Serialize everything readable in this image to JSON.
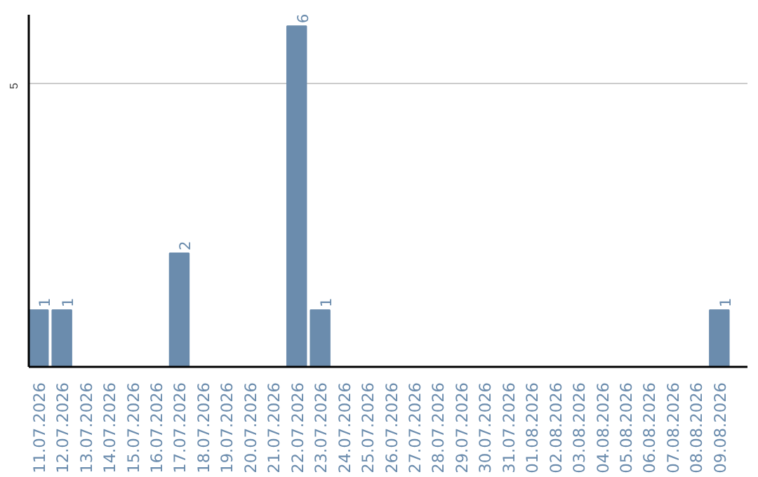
{
  "chart_data": {
    "type": "bar",
    "categories": [
      "11.07.2026",
      "12.07.2026",
      "13.07.2026",
      "14.07.2026",
      "15.07.2026",
      "16.07.2026",
      "17.07.2026",
      "18.07.2026",
      "19.07.2026",
      "20.07.2026",
      "21.07.2026",
      "22.07.2026",
      "23.07.2026",
      "24.07.2026",
      "25.07.2026",
      "26.07.2026",
      "27.07.2026",
      "28.07.2026",
      "29.07.2026",
      "30.07.2026",
      "31.07.2026",
      "01.08.2026",
      "02.08.2026",
      "03.08.2026",
      "04.08.2026",
      "05.08.2026",
      "06.08.2026",
      "07.08.2026",
      "08.08.2026",
      "09.08.2026"
    ],
    "values": [
      1,
      1,
      0,
      0,
      0,
      0,
      2,
      0,
      0,
      0,
      0,
      6,
      1,
      0,
      0,
      0,
      0,
      0,
      0,
      0,
      0,
      0,
      0,
      0,
      0,
      0,
      0,
      0,
      0,
      1
    ],
    "value_labels": [
      "1",
      "1",
      null,
      null,
      null,
      null,
      "2",
      null,
      null,
      null,
      null,
      "6",
      "1",
      null,
      null,
      null,
      null,
      null,
      null,
      null,
      null,
      null,
      null,
      null,
      null,
      null,
      null,
      null,
      null,
      "1"
    ],
    "color": "#6b8cad",
    "ylim": [
      0,
      6.2
    ],
    "yticks": [
      5
    ],
    "grid": "y"
  }
}
